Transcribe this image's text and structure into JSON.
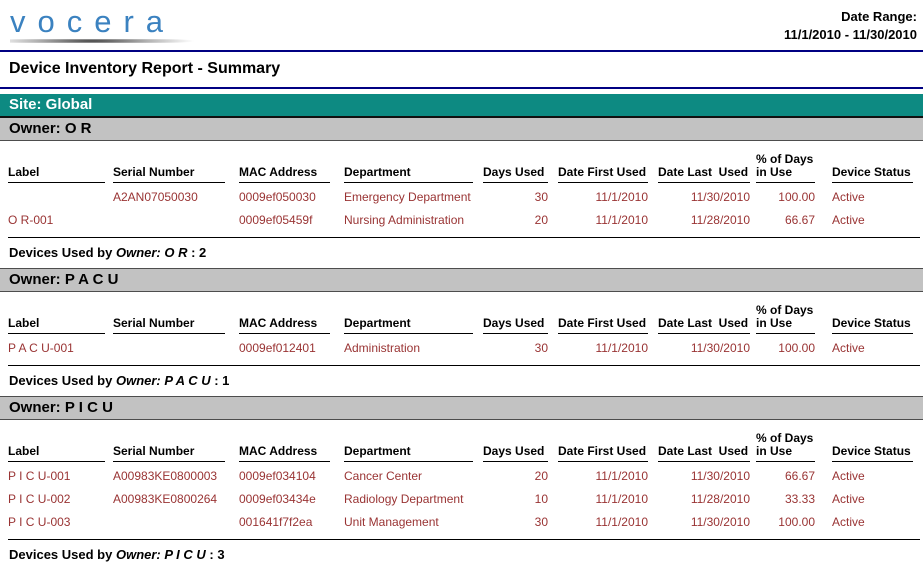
{
  "logo": {
    "text": "vocera"
  },
  "date_range": {
    "label": "Date Range:",
    "value": "11/1/2010 - 11/30/2010"
  },
  "title": "Device Inventory Report - Summary",
  "site_banner": "Site: Global",
  "colors": {
    "accent_teal": "#0d8a82",
    "banner_gray": "#c2c2c2",
    "rule_navy": "#000082",
    "data_text": "#993333",
    "logo_blue": "#3b82c0"
  },
  "table_headers": [
    "Label",
    "Serial Number",
    "MAC Address",
    "Department",
    "Days Used",
    "Date First Used",
    "Date Last  Used",
    "% of Days\nin Use",
    "Device Status"
  ],
  "sections": [
    {
      "owner_banner": "Owner: O R",
      "rows": [
        {
          "label": "",
          "serial": "A2AN07050030",
          "mac": "0009ef050030",
          "department": "Emergency Department",
          "days_used": "30",
          "date_first": "11/1/2010",
          "date_last": "11/30/2010",
          "pct_days": "100.00",
          "status": "Active"
        },
        {
          "label": "O R-001",
          "serial": "",
          "mac": "0009ef05459f",
          "department": "Nursing Administration",
          "days_used": "20",
          "date_first": "11/1/2010",
          "date_last": "11/28/2010",
          "pct_days": "66.67",
          "status": "Active"
        }
      ],
      "summary_prefix": "Devices Used by",
      "summary_owner": "Owner: O R",
      "summary_count": " : 2"
    },
    {
      "owner_banner": "Owner: P A C U",
      "rows": [
        {
          "label": "P A C U-001",
          "serial": "",
          "mac": "0009ef012401",
          "department": "Administration",
          "days_used": "30",
          "date_first": "11/1/2010",
          "date_last": "11/30/2010",
          "pct_days": "100.00",
          "status": "Active"
        }
      ],
      "summary_prefix": "Devices Used by",
      "summary_owner": "Owner: P A C U",
      "summary_count": " : 1"
    },
    {
      "owner_banner": "Owner: P I C U",
      "rows": [
        {
          "label": "P I C U-001",
          "serial": "A00983KE0800003",
          "mac": "0009ef034104",
          "department": "Cancer Center",
          "days_used": "20",
          "date_first": "11/1/2010",
          "date_last": "11/30/2010",
          "pct_days": "66.67",
          "status": "Active"
        },
        {
          "label": "P I C U-002",
          "serial": "A00983KE0800264",
          "mac": "0009ef03434e",
          "department": "Radiology Department",
          "days_used": "10",
          "date_first": "11/1/2010",
          "date_last": "11/28/2010",
          "pct_days": "33.33",
          "status": "Active"
        },
        {
          "label": "P I C U-003",
          "serial": "",
          "mac": "001641f7f2ea",
          "department": "Unit Management",
          "days_used": "30",
          "date_first": "11/1/2010",
          "date_last": "11/30/2010",
          "pct_days": "100.00",
          "status": "Active"
        }
      ],
      "summary_prefix": "Devices Used by",
      "summary_owner": "Owner: P I C U",
      "summary_count": " : 3"
    }
  ]
}
